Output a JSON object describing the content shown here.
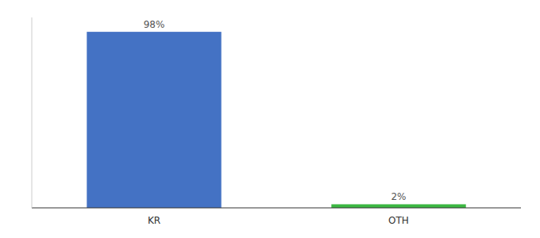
{
  "chart_data": {
    "type": "bar",
    "categories": [
      "KR",
      "OTH"
    ],
    "values": [
      98,
      2
    ],
    "value_labels": [
      "98%",
      "2%"
    ],
    "colors": [
      "#4472c4",
      "#3cb843"
    ],
    "ylim": [
      0,
      106
    ],
    "data_labels": true,
    "tick_labels": "x"
  }
}
